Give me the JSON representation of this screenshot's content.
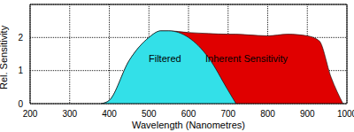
{
  "chart_data": {
    "type": "area",
    "x_label": "Wavelength (Nanometres)",
    "y_label": "Rel. Sensitivity",
    "x": [
      380,
      400,
      450,
      500,
      530,
      550,
      600,
      650,
      700,
      720,
      750,
      800,
      850,
      900,
      930,
      960,
      990
    ],
    "series": [
      {
        "name": "Inherent Sensitivity",
        "color": "#e00000",
        "values": [
          0,
          0.1,
          1.3,
          2.0,
          2.2,
          2.2,
          2.15,
          2.12,
          2.1,
          2.1,
          2.08,
          2.05,
          2.1,
          2.05,
          1.9,
          0.8,
          0
        ]
      },
      {
        "name": "Filtered",
        "color": "#33e0e8",
        "values": [
          0,
          0.1,
          1.3,
          2.0,
          2.2,
          2.2,
          2.0,
          1.4,
          0.4,
          0,
          null,
          null,
          null,
          null,
          null,
          null,
          null
        ]
      }
    ],
    "xlim": [
      200,
      1000
    ],
    "xticks": [
      200,
      300,
      400,
      500,
      600,
      700,
      800,
      900,
      1000
    ],
    "ylim": [
      0,
      3
    ],
    "yticks": [
      0,
      1,
      2
    ],
    "grid": true
  }
}
